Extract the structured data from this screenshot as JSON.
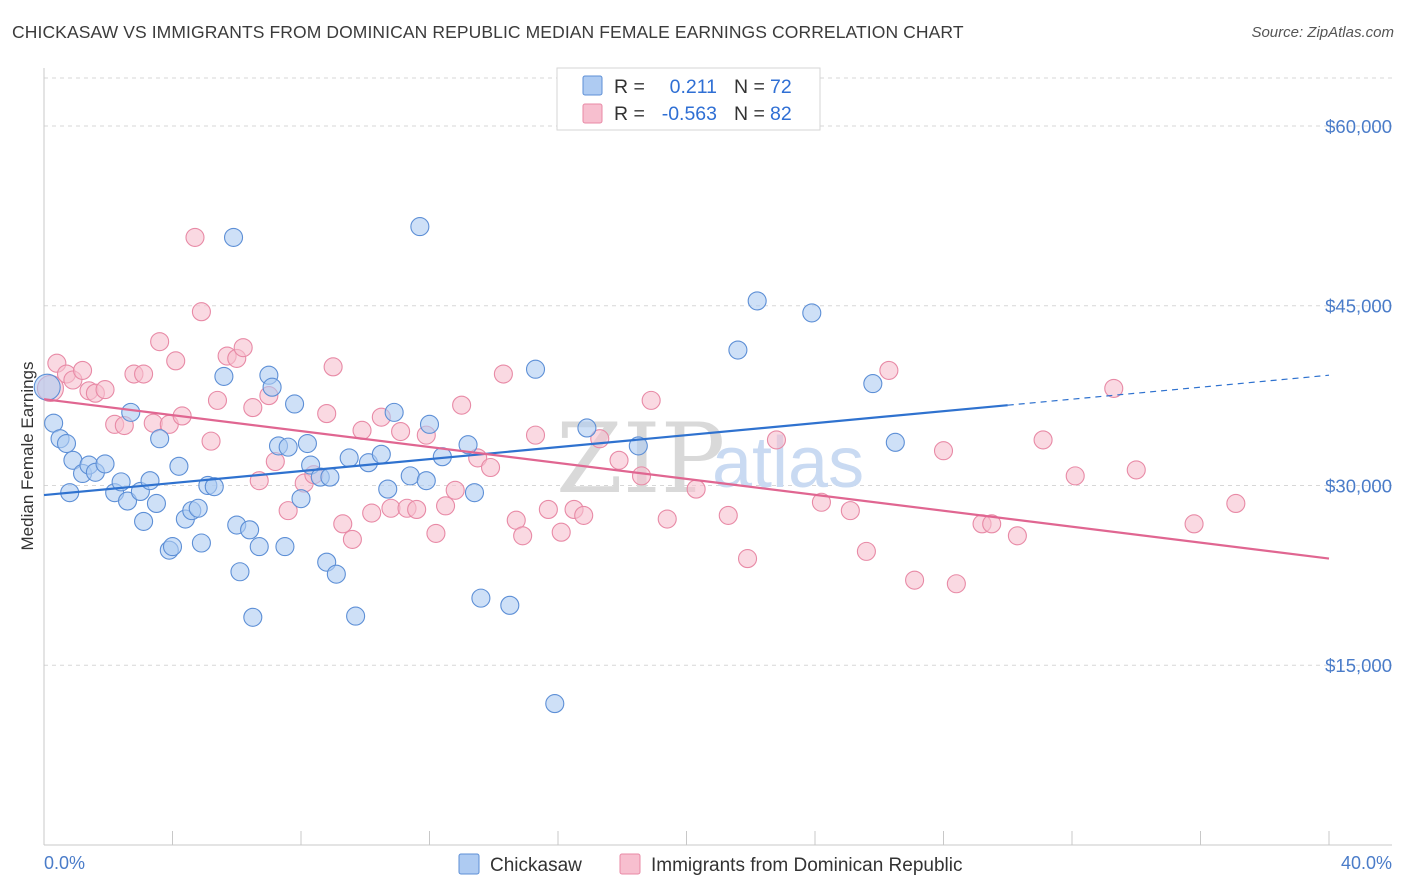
{
  "header": {
    "title": "CHICKASAW VS IMMIGRANTS FROM DOMINICAN REPUBLIC MEDIAN FEMALE EARNINGS CORRELATION CHART",
    "source": "Source: ZipAtlas.com"
  },
  "watermark": {
    "zip": "ZIP",
    "atlas": "atlas"
  },
  "legend": {
    "r_label": "R =",
    "n_label": "N =",
    "rows": [
      {
        "r": "0.211",
        "n": "72",
        "color": "#aecbf2"
      },
      {
        "r": "-0.563",
        "n": "82",
        "color": "#f7bfcf"
      }
    ]
  },
  "colors": {
    "series1_fill": "#aecbf2",
    "series1_stroke": "#5d8fd6",
    "series1_line": "#2f72cf",
    "series2_fill": "#f7bfcf",
    "series2_stroke": "#e88aa6",
    "series2_line": "#e06691",
    "grid": "#d7d7d7",
    "axis_text": "#4a7cc9"
  },
  "chart_data": {
    "type": "scatter",
    "title": "CHICKASAW VS IMMIGRANTS FROM DOMINICAN REPUBLIC MEDIAN FEMALE EARNINGS CORRELATION CHART",
    "ylabel": "Median Female Earnings",
    "xlabel": "",
    "xlim": [
      0,
      40
    ],
    "ylim": [
      0,
      64000
    ],
    "x_tick_labels": [
      "0.0%",
      "40.0%"
    ],
    "y_ticks": [
      15000,
      30000,
      45000,
      60000
    ],
    "y_tick_labels": [
      "$15,000",
      "$30,000",
      "$45,000",
      "$60,000"
    ],
    "grid": "horizontal dashed",
    "legend_position": "top-center",
    "series": [
      {
        "name": "Chickasaw",
        "r": 0.211,
        "n": 72,
        "trend": {
          "x0": 0,
          "y0": 29200,
          "x1": 30,
          "y1": 36700,
          "dashed_to_x": 40,
          "dashed_to_y": 39200
        },
        "points": [
          [
            0.1,
            38200
          ],
          [
            0.3,
            35200
          ],
          [
            0.5,
            33900
          ],
          [
            0.7,
            33500
          ],
          [
            0.8,
            29400
          ],
          [
            0.9,
            32100
          ],
          [
            1.2,
            31000
          ],
          [
            1.4,
            31700
          ],
          [
            1.6,
            31100
          ],
          [
            1.9,
            31800
          ],
          [
            2.2,
            29400
          ],
          [
            2.4,
            30300
          ],
          [
            2.6,
            28700
          ],
          [
            2.7,
            36100
          ],
          [
            3.0,
            29500
          ],
          [
            3.1,
            27000
          ],
          [
            3.3,
            30400
          ],
          [
            3.5,
            28500
          ],
          [
            3.6,
            33900
          ],
          [
            3.9,
            24600
          ],
          [
            4.0,
            24900
          ],
          [
            4.2,
            31600
          ],
          [
            4.4,
            27200
          ],
          [
            4.6,
            27900
          ],
          [
            4.8,
            28100
          ],
          [
            4.9,
            25200
          ],
          [
            5.1,
            30000
          ],
          [
            5.3,
            29900
          ],
          [
            5.6,
            39100
          ],
          [
            5.9,
            50700
          ],
          [
            6.0,
            26700
          ],
          [
            6.1,
            22800
          ],
          [
            6.4,
            26300
          ],
          [
            6.5,
            19000
          ],
          [
            6.7,
            24900
          ],
          [
            7.0,
            39200
          ],
          [
            7.1,
            38200
          ],
          [
            7.3,
            33300
          ],
          [
            7.5,
            24900
          ],
          [
            7.6,
            33200
          ],
          [
            7.8,
            36800
          ],
          [
            8.0,
            28900
          ],
          [
            8.2,
            33500
          ],
          [
            8.3,
            31700
          ],
          [
            8.6,
            30700
          ],
          [
            8.8,
            23600
          ],
          [
            8.9,
            30700
          ],
          [
            9.1,
            22600
          ],
          [
            9.5,
            32300
          ],
          [
            9.7,
            19100
          ],
          [
            10.1,
            31900
          ],
          [
            10.5,
            32600
          ],
          [
            10.7,
            29700
          ],
          [
            10.9,
            36100
          ],
          [
            11.4,
            30800
          ],
          [
            11.7,
            51600
          ],
          [
            11.9,
            30400
          ],
          [
            12.0,
            35100
          ],
          [
            12.4,
            32400
          ],
          [
            13.2,
            33400
          ],
          [
            13.4,
            29400
          ],
          [
            13.6,
            20600
          ],
          [
            14.5,
            20000
          ],
          [
            15.3,
            39700
          ],
          [
            15.9,
            11800
          ],
          [
            16.9,
            34800
          ],
          [
            18.5,
            33300
          ],
          [
            21.6,
            41300
          ],
          [
            22.2,
            45400
          ],
          [
            23.9,
            44400
          ],
          [
            25.8,
            38500
          ],
          [
            26.5,
            33600
          ]
        ]
      },
      {
        "name": "Immigrants from Dominican Republic",
        "r": -0.563,
        "n": 82,
        "trend": {
          "x0": 0,
          "y0": 37200,
          "x1": 40,
          "y1": 23900
        },
        "points": [
          [
            0.2,
            38100
          ],
          [
            0.4,
            40200
          ],
          [
            0.7,
            39300
          ],
          [
            0.9,
            38800
          ],
          [
            1.2,
            39600
          ],
          [
            1.4,
            37900
          ],
          [
            1.6,
            37700
          ],
          [
            1.9,
            38000
          ],
          [
            2.2,
            35100
          ],
          [
            2.5,
            35000
          ],
          [
            2.8,
            39300
          ],
          [
            3.1,
            39300
          ],
          [
            3.4,
            35200
          ],
          [
            3.6,
            42000
          ],
          [
            3.9,
            35100
          ],
          [
            4.1,
            40400
          ],
          [
            4.3,
            35800
          ],
          [
            4.7,
            50700
          ],
          [
            4.9,
            44500
          ],
          [
            5.2,
            33700
          ],
          [
            5.4,
            37100
          ],
          [
            5.7,
            40800
          ],
          [
            6.0,
            40600
          ],
          [
            6.2,
            41500
          ],
          [
            6.5,
            36500
          ],
          [
            6.7,
            30400
          ],
          [
            7.0,
            37500
          ],
          [
            7.2,
            32000
          ],
          [
            7.6,
            27900
          ],
          [
            8.1,
            30200
          ],
          [
            8.4,
            30900
          ],
          [
            8.8,
            36000
          ],
          [
            9.0,
            39900
          ],
          [
            9.3,
            26800
          ],
          [
            9.6,
            25500
          ],
          [
            9.9,
            34600
          ],
          [
            10.2,
            27700
          ],
          [
            10.5,
            35700
          ],
          [
            10.8,
            28100
          ],
          [
            11.1,
            34500
          ],
          [
            11.3,
            28100
          ],
          [
            11.6,
            28000
          ],
          [
            11.9,
            34200
          ],
          [
            12.2,
            26000
          ],
          [
            12.5,
            28300
          ],
          [
            12.8,
            29600
          ],
          [
            13.0,
            36700
          ],
          [
            13.5,
            32300
          ],
          [
            13.9,
            31500
          ],
          [
            14.3,
            39300
          ],
          [
            14.7,
            27100
          ],
          [
            14.9,
            25800
          ],
          [
            15.3,
            34200
          ],
          [
            15.7,
            28000
          ],
          [
            16.1,
            26100
          ],
          [
            16.5,
            28000
          ],
          [
            16.8,
            27500
          ],
          [
            17.3,
            33900
          ],
          [
            17.9,
            32100
          ],
          [
            18.6,
            30800
          ],
          [
            18.9,
            37100
          ],
          [
            19.4,
            27200
          ],
          [
            20.3,
            29700
          ],
          [
            21.3,
            27500
          ],
          [
            21.9,
            23900
          ],
          [
            22.8,
            33800
          ],
          [
            24.2,
            28600
          ],
          [
            25.1,
            27900
          ],
          [
            25.6,
            24500
          ],
          [
            26.3,
            39600
          ],
          [
            27.1,
            22100
          ],
          [
            28.0,
            32900
          ],
          [
            28.4,
            21800
          ],
          [
            29.2,
            26800
          ],
          [
            29.5,
            26800
          ],
          [
            30.3,
            25800
          ],
          [
            31.1,
            33800
          ],
          [
            32.1,
            30800
          ],
          [
            33.3,
            38100
          ],
          [
            34.0,
            31300
          ],
          [
            35.8,
            26800
          ],
          [
            37.1,
            28500
          ]
        ]
      }
    ]
  }
}
